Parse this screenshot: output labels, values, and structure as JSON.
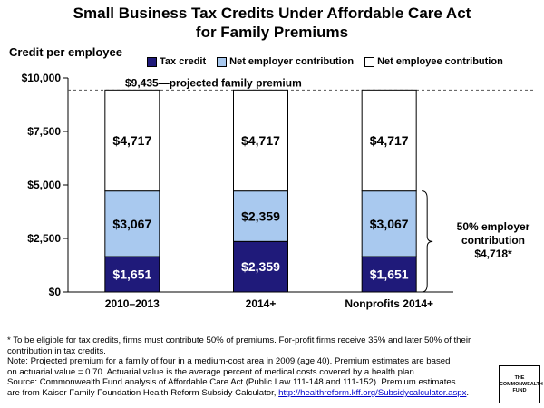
{
  "chart_data": {
    "type": "bar",
    "stacked": true,
    "title_line1": "Small Business Tax Credits Under Affordable Care Act",
    "title_line2": "for Family Premiums",
    "ylabel": "Credit per employee",
    "ylim": [
      0,
      10000
    ],
    "yticks": [
      0,
      2500,
      5000,
      7500,
      10000
    ],
    "ytick_labels": [
      "$0",
      "$2,500",
      "$5,000",
      "$7,500",
      "$10,000"
    ],
    "categories": [
      "2010–2013",
      "2014+",
      "Nonprofits 2014+"
    ],
    "series": [
      {
        "name": "Tax credit",
        "color": "#1f1a7a",
        "values": [
          1651,
          2359,
          1651
        ],
        "labels": [
          "$1,651",
          "$2,359",
          "$1,651"
        ]
      },
      {
        "name": "Net employer contribution",
        "color": "#a9c9ef",
        "values": [
          3067,
          2359,
          3067
        ],
        "labels": [
          "$3,067",
          "$2,359",
          "$3,067"
        ]
      },
      {
        "name": "Net employee contribution",
        "color": "#ffffff",
        "values": [
          4717,
          4717,
          4717
        ],
        "labels": [
          "$4,717",
          "$4,717",
          "$4,717"
        ]
      }
    ],
    "reference_line": {
      "value": 9435,
      "label": "$9,435—projected family premium"
    },
    "legend_placement": "top",
    "grid": false,
    "annotation": {
      "line1": "50% employer",
      "line2": "contribution",
      "line3": "$4,718*"
    }
  },
  "footnote": {
    "line1": "* To be eligible for tax credits, firms must contribute 50% of premiums. For-profit firms receive 35% and later 50% of their",
    "line2": "contribution in tax credits.",
    "line3": "Note: Projected premium for a family of four in a medium-cost area in 2009 (age 40). Premium estimates are based",
    "line4": "on actuarial value = 0.70. Actuarial value is the average percent of medical costs covered by a health plan.",
    "line5": "Source: Commonwealth Fund analysis of Affordable Care Act (Public Law 111-148 and 111-152). Premium estimates",
    "line6_prefix": "are from Kaiser Family Foundation Health Reform Subsidy Calculator, ",
    "line6_link": "http://healthreform.kff.org/Subsidycalculator.aspx",
    "line6_suffix": "."
  },
  "logo": {
    "line1": "THE",
    "line2": "COMMONWEALTH",
    "line3": "FUND"
  }
}
